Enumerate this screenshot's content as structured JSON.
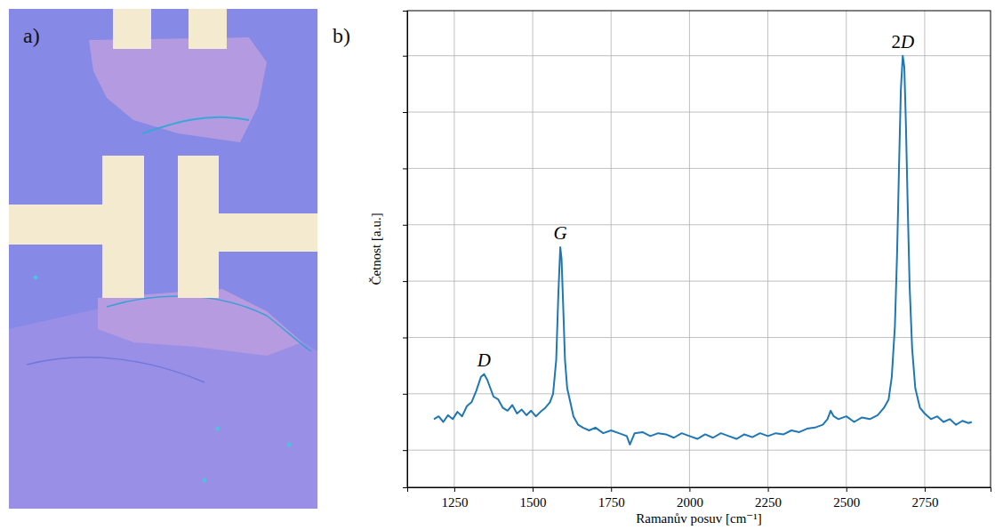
{
  "panel_labels": [
    "a)",
    "b)"
  ],
  "chart_data": {
    "type": "line",
    "x_label": "Ramanův posuv [cm⁻¹]",
    "y_label": "Četnost [a.u.]",
    "color": "#1f77b4",
    "grid": true,
    "tick_labels": "x",
    "xlim": [
      1100,
      2960
    ],
    "ylim": [
      -0.66,
      7.8
    ],
    "xticks": [
      1250,
      1500,
      1750,
      2000,
      2250,
      2500,
      2750
    ],
    "yticks": [
      0,
      1,
      2,
      3,
      4,
      5,
      6,
      7
    ],
    "x": [
      1185,
      1200,
      1215,
      1230,
      1245,
      1260,
      1275,
      1290,
      1305,
      1320,
      1335,
      1345,
      1355,
      1365,
      1375,
      1390,
      1405,
      1420,
      1435,
      1450,
      1465,
      1480,
      1495,
      1510,
      1525,
      1540,
      1555,
      1565,
      1575,
      1582,
      1588,
      1592,
      1597,
      1603,
      1610,
      1620,
      1630,
      1645,
      1660,
      1680,
      1700,
      1725,
      1750,
      1775,
      1800,
      1810,
      1825,
      1850,
      1875,
      1900,
      1925,
      1950,
      1975,
      2000,
      2025,
      2050,
      2075,
      2100,
      2125,
      2150,
      2175,
      2200,
      2225,
      2250,
      2275,
      2300,
      2325,
      2350,
      2375,
      2400,
      2425,
      2440,
      2450,
      2460,
      2475,
      2500,
      2525,
      2550,
      2575,
      2600,
      2620,
      2635,
      2645,
      2655,
      2662,
      2668,
      2674,
      2680,
      2685,
      2690,
      2696,
      2702,
      2710,
      2720,
      2735,
      2750,
      2770,
      2790,
      2810,
      2830,
      2850,
      2870,
      2890,
      2900
    ],
    "values": [
      0.55,
      0.6,
      0.5,
      0.62,
      0.55,
      0.68,
      0.6,
      0.78,
      0.85,
      1.05,
      1.3,
      1.35,
      1.25,
      1.1,
      0.95,
      0.9,
      0.75,
      0.7,
      0.8,
      0.65,
      0.72,
      0.62,
      0.7,
      0.6,
      0.68,
      0.75,
      0.85,
      1.0,
      1.6,
      2.8,
      3.6,
      3.4,
      2.6,
      1.6,
      1.1,
      0.85,
      0.6,
      0.45,
      0.4,
      0.35,
      0.4,
      0.3,
      0.35,
      0.3,
      0.25,
      0.1,
      0.3,
      0.32,
      0.25,
      0.3,
      0.28,
      0.22,
      0.3,
      0.25,
      0.2,
      0.28,
      0.22,
      0.3,
      0.25,
      0.2,
      0.28,
      0.23,
      0.3,
      0.25,
      0.3,
      0.28,
      0.35,
      0.32,
      0.38,
      0.4,
      0.45,
      0.55,
      0.7,
      0.6,
      0.55,
      0.6,
      0.5,
      0.58,
      0.55,
      0.62,
      0.75,
      0.9,
      1.3,
      2.2,
      3.5,
      5.0,
      6.4,
      7.0,
      6.8,
      5.8,
      4.3,
      2.9,
      1.8,
      1.1,
      0.75,
      0.65,
      0.55,
      0.6,
      0.5,
      0.55,
      0.45,
      0.52,
      0.48,
      0.5
    ],
    "annotations": [
      {
        "text": "D",
        "x": 1345,
        "y": 1.35
      },
      {
        "text": "G",
        "x": 1588,
        "y": 3.6
      },
      {
        "text": "2D",
        "x": 2680,
        "y": 7.0
      }
    ]
  }
}
